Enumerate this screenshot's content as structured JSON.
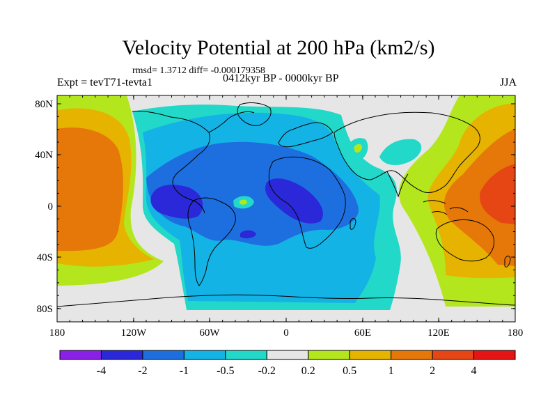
{
  "title": "Velocity Potential at 200 hPa (km2/s)",
  "stats_line": "rmsd= 1.3712 diff= -0.000179358",
  "left_label": "Expt = tevT71-tevta1",
  "center_label": "0412kyr BP - 0000kyr BP",
  "right_label": "JJA",
  "lat_ticks": [
    "80N",
    "40N",
    "0",
    "40S",
    "80S"
  ],
  "lon_ticks": [
    "180",
    "120W",
    "60W",
    "0",
    "60E",
    "120E",
    "180"
  ],
  "colorbar": {
    "labels": [
      "-4",
      "-2",
      "-1",
      "-0.5",
      "-0.2",
      "0.2",
      "0.5",
      "1",
      "2",
      "4"
    ],
    "colors": [
      "#8a20e6",
      "#2a28d8",
      "#1d6fe0",
      "#14b3e6",
      "#22d8c8",
      "#e6e6e6",
      "#b4e61e",
      "#e6b400",
      "#e6780a",
      "#e64614",
      "#e61414"
    ]
  },
  "map_colors": {
    "neutral": "#e6e6e6",
    "pos_weak": "#b4e61e",
    "pos_mid": "#e6b400",
    "pos_strong": "#e6780a",
    "pos_max": "#e64614",
    "neg_weak": "#22d8c8",
    "neg_mid": "#14b3e6",
    "neg_strong": "#1d6fe0",
    "neg_max": "#2a28d8",
    "coast": "#000000"
  }
}
